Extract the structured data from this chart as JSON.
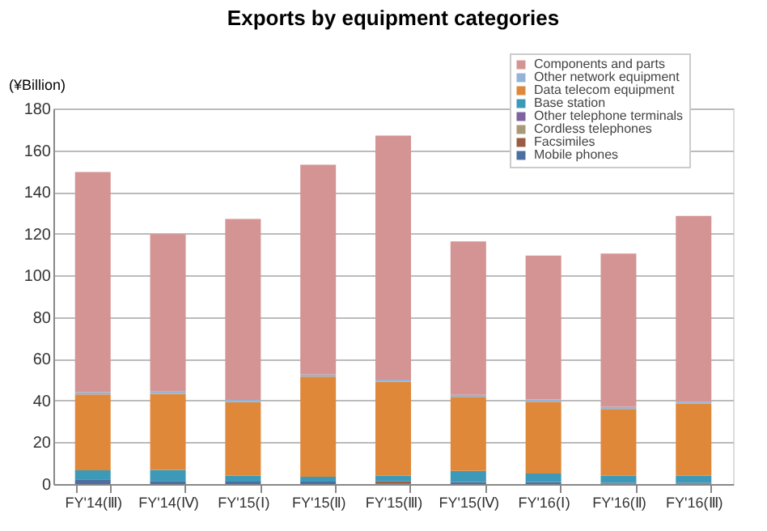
{
  "chart_data": {
    "type": "bar",
    "title": "Exports by equipment categories",
    "ylabel": "(¥Billion)",
    "categories": [
      "FY'14(Ⅲ)",
      "FY'14(Ⅳ)",
      "FY'15(Ⅰ)",
      "FY'15(Ⅱ)",
      "FY'15(Ⅲ)",
      "FY'15(Ⅳ)",
      "FY'16(Ⅰ)",
      "FY'16(Ⅱ)",
      "FY'16(Ⅲ)"
    ],
    "stacked": true,
    "ylim": [
      0,
      180
    ],
    "yticks": [
      0,
      20,
      40,
      60,
      80,
      100,
      120,
      140,
      160,
      180
    ],
    "grid": "y",
    "legend": "top right",
    "series": [
      {
        "name": "Mobile phones",
        "color": "#4a6fa0",
        "values": [
          2,
          1.5,
          1.2,
          1.2,
          0.3,
          1,
          1,
          0.3,
          0.3
        ]
      },
      {
        "name": "Facsimiles",
        "color": "#9c5b43",
        "values": [
          0,
          0,
          0,
          0,
          1,
          0,
          0,
          0,
          0
        ]
      },
      {
        "name": "Cordless telephones",
        "color": "#a89a79",
        "values": [
          0,
          0,
          0,
          0,
          0,
          0,
          0,
          0,
          0
        ]
      },
      {
        "name": "Other telephone terminals",
        "color": "#7f63a0",
        "values": [
          0.3,
          0,
          0,
          0,
          0,
          0,
          0,
          0.3,
          0.3
        ]
      },
      {
        "name": "Base station",
        "color": "#3c9ab8",
        "values": [
          4.3,
          5.3,
          2.8,
          2.3,
          2.7,
          5.3,
          4,
          3.4,
          3.4
        ]
      },
      {
        "name": "Data telecom equipment",
        "color": "#e0883a",
        "values": [
          36.4,
          36.5,
          35.3,
          48,
          45,
          35.5,
          34.5,
          32,
          34.5
        ]
      },
      {
        "name": "Other network equipment",
        "color": "#95b3d7",
        "values": [
          1,
          1,
          1,
          1,
          1,
          1,
          1,
          1,
          1
        ]
      },
      {
        "name": "Components and parts",
        "color": "#d59494",
        "values": [
          105.5,
          75.5,
          86.7,
          100.5,
          117,
          73.5,
          69,
          73.5,
          89
        ]
      }
    ]
  }
}
